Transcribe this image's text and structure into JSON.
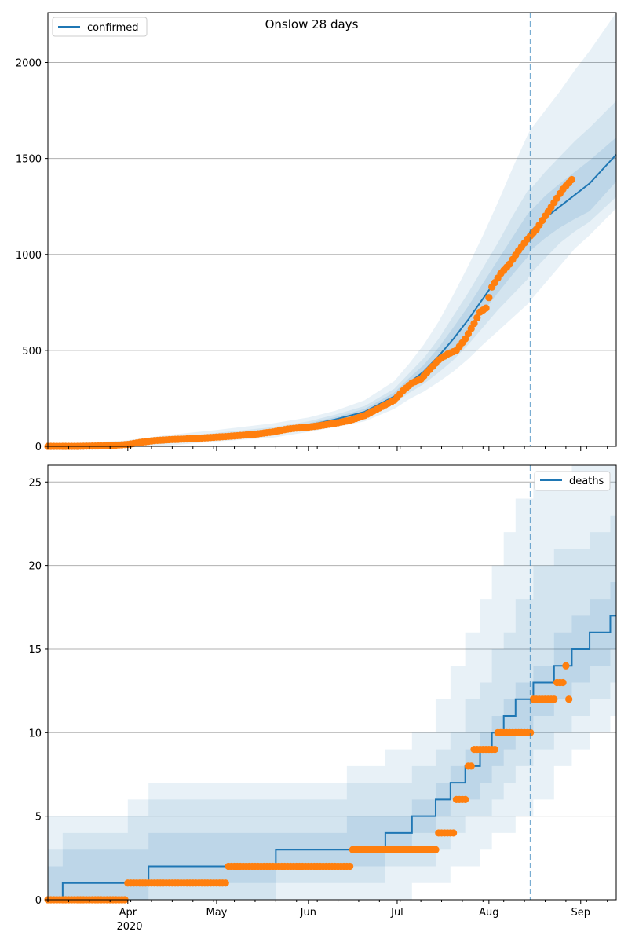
{
  "title": "Onslow 28 days",
  "colors": {
    "model_line": "#1f77b4",
    "observed": "#ff7f0e",
    "band": "#1f77b4",
    "grid": "#b0b0b0",
    "vline": "#1f77b4"
  },
  "x_axis": {
    "ticks": [
      "Apr",
      "May",
      "Jun",
      "Jul",
      "Aug",
      "Sep"
    ],
    "year_label": "2020"
  },
  "legend": {
    "top": "confirmed",
    "bottom": "deaths"
  },
  "chart_data": [
    {
      "type": "line",
      "panel": "top",
      "title": "Onslow 28 days",
      "legend_entry": "confirmed",
      "legend_position": "upper left",
      "grid": "horizontal",
      "xlim": [
        "2020-03-05",
        "2020-09-13"
      ],
      "ylim": [
        0,
        2260
      ],
      "yticks": [
        0,
        500,
        1000,
        1500,
        2000
      ],
      "forecast_start": "2020-08-15",
      "model": {
        "name": "confirmed",
        "dates": [
          "2020-03-05",
          "2020-03-31",
          "2020-04-15",
          "2020-05-01",
          "2020-05-20",
          "2020-06-01",
          "2020-06-10",
          "2020-06-20",
          "2020-06-30",
          "2020-07-05",
          "2020-07-10",
          "2020-07-15",
          "2020-07-20",
          "2020-07-25",
          "2020-07-30",
          "2020-08-04",
          "2020-08-09",
          "2020-08-14",
          "2020-08-15",
          "2020-08-20",
          "2020-08-25",
          "2020-08-30",
          "2020-09-04",
          "2020-09-13"
        ],
        "values": [
          0,
          5,
          30,
          50,
          80,
          110,
          140,
          180,
          260,
          330,
          390,
          470,
          560,
          660,
          770,
          880,
          980,
          1080,
          1120,
          1190,
          1250,
          1310,
          1370,
          1520
        ],
        "bands": {
          "upper_outer": [
            10,
            30,
            60,
            85,
            120,
            150,
            185,
            240,
            340,
            430,
            530,
            650,
            790,
            940,
            1100,
            1270,
            1450,
            1620,
            1650,
            1750,
            1850,
            1960,
            2060,
            2260
          ],
          "upper_mid": [
            6,
            18,
            45,
            70,
            100,
            130,
            165,
            210,
            300,
            380,
            460,
            560,
            680,
            800,
            930,
            1060,
            1200,
            1330,
            1340,
            1430,
            1510,
            1590,
            1660,
            1800
          ],
          "upper_inner": [
            3,
            10,
            38,
            60,
            90,
            120,
            152,
            195,
            280,
            355,
            425,
            515,
            620,
            730,
            850,
            970,
            1090,
            1210,
            1225,
            1305,
            1370,
            1430,
            1490,
            1610
          ],
          "lower_inner": [
            0,
            2,
            22,
            42,
            70,
            100,
            128,
            168,
            245,
            308,
            360,
            430,
            505,
            595,
            700,
            800,
            895,
            985,
            1020,
            1085,
            1140,
            1185,
            1225,
            1380
          ],
          "lower_mid": [
            0,
            0,
            15,
            34,
            60,
            88,
            116,
            152,
            222,
            278,
            325,
            385,
            450,
            530,
            620,
            710,
            790,
            870,
            900,
            980,
            1060,
            1120,
            1170,
            1300
          ],
          "lower_outer": [
            0,
            0,
            5,
            25,
            45,
            75,
            100,
            130,
            195,
            245,
            285,
            335,
            390,
            455,
            530,
            600,
            670,
            740,
            760,
            850,
            940,
            1030,
            1100,
            1240
          ]
        }
      },
      "observed": {
        "dates": [
          "2020-03-05",
          "2020-03-15",
          "2020-03-25",
          "2020-04-01",
          "2020-04-05",
          "2020-04-10",
          "2020-04-15",
          "2020-04-20",
          "2020-04-25",
          "2020-05-01",
          "2020-05-05",
          "2020-05-10",
          "2020-05-15",
          "2020-05-20",
          "2020-05-25",
          "2020-05-28",
          "2020-06-01",
          "2020-06-05",
          "2020-06-10",
          "2020-06-15",
          "2020-06-20",
          "2020-06-25",
          "2020-06-30",
          "2020-07-03",
          "2020-07-06",
          "2020-07-09",
          "2020-07-12",
          "2020-07-15",
          "2020-07-18",
          "2020-07-21",
          "2020-07-24",
          "2020-07-27",
          "2020-07-29",
          "2020-07-31",
          "2020-08-02",
          "2020-08-05",
          "2020-08-08",
          "2020-08-11",
          "2020-08-14",
          "2020-08-17",
          "2020-08-20",
          "2020-08-23",
          "2020-08-26",
          "2020-08-29"
        ],
        "values": [
          0,
          0,
          3,
          10,
          20,
          30,
          35,
          38,
          42,
          48,
          52,
          58,
          65,
          75,
          90,
          95,
          100,
          108,
          120,
          135,
          160,
          200,
          240,
          290,
          330,
          350,
          400,
          450,
          480,
          500,
          560,
          640,
          700,
          720,
          830,
          900,
          950,
          1020,
          1080,
          1130,
          1200,
          1270,
          1340,
          1390
        ]
      }
    },
    {
      "type": "line",
      "panel": "bottom",
      "legend_entry": "deaths",
      "legend_position": "upper right",
      "grid": "horizontal",
      "xlim": [
        "2020-03-05",
        "2020-09-13"
      ],
      "ylim": [
        0,
        26
      ],
      "yticks": [
        0,
        5,
        10,
        15,
        20,
        25
      ],
      "forecast_start": "2020-08-15",
      "model": {
        "name": "deaths",
        "dates": [
          "2020-03-05",
          "2020-03-09",
          "2020-03-31",
          "2020-04-07",
          "2020-05-20",
          "2020-06-13",
          "2020-06-26",
          "2020-07-05",
          "2020-07-13",
          "2020-07-18",
          "2020-07-23",
          "2020-07-28",
          "2020-08-01",
          "2020-08-05",
          "2020-08-09",
          "2020-08-15",
          "2020-08-17",
          "2020-08-22",
          "2020-08-28",
          "2020-09-03",
          "2020-09-10",
          "2020-09-13"
        ],
        "values": [
          0,
          1,
          1,
          2,
          3,
          3,
          4,
          5,
          6,
          7,
          8,
          9,
          10,
          11,
          12,
          13,
          13,
          14,
          15,
          16,
          17,
          17
        ],
        "bands": {
          "upper_outer": [
            5,
            5,
            6,
            7,
            7,
            8,
            9,
            10,
            12,
            14,
            16,
            18,
            20,
            22,
            24,
            25,
            25,
            25,
            26,
            26,
            26,
            26
          ],
          "upper_mid": [
            3,
            4,
            5,
            6,
            6,
            7,
            7,
            8,
            9,
            10,
            12,
            13,
            15,
            16,
            18,
            20,
            20,
            21,
            21,
            22,
            23,
            23
          ],
          "upper_inner": [
            2,
            3,
            3,
            4,
            4,
            5,
            5,
            6,
            7,
            8,
            9,
            10,
            11,
            12,
            13,
            14,
            14,
            16,
            17,
            18,
            19,
            19
          ],
          "lower_inner": [
            0,
            0,
            0,
            1,
            2,
            2,
            3,
            4,
            5,
            6,
            6,
            7,
            8,
            9,
            10,
            11,
            11,
            12,
            13,
            14,
            15,
            15
          ],
          "lower_mid": [
            0,
            0,
            0,
            0,
            1,
            1,
            2,
            2,
            3,
            4,
            5,
            5,
            6,
            7,
            8,
            9,
            9,
            10,
            11,
            12,
            13,
            13
          ],
          "lower_outer": [
            0,
            0,
            0,
            0,
            0,
            0,
            0,
            1,
            1,
            2,
            2,
            3,
            4,
            4,
            5,
            6,
            6,
            8,
            9,
            10,
            11,
            12
          ]
        }
      },
      "observed": {
        "dates": [
          "2020-03-05",
          "2020-03-15",
          "2020-03-25",
          "2020-03-31",
          "2020-04-10",
          "2020-04-20",
          "2020-04-30",
          "2020-05-04",
          "2020-05-14",
          "2020-05-24",
          "2020-06-03",
          "2020-06-12",
          "2020-06-15",
          "2020-06-25",
          "2020-07-05",
          "2020-07-14",
          "2020-07-20",
          "2020-07-24",
          "2020-07-26",
          "2020-07-28",
          "2020-08-01",
          "2020-08-03",
          "2020-08-08",
          "2020-08-12",
          "2020-08-15",
          "2020-08-19",
          "2020-08-23",
          "2020-08-26",
          "2020-08-28"
        ],
        "values": [
          0,
          0,
          0,
          1,
          1,
          1,
          1,
          2,
          2,
          2,
          2,
          2,
          3,
          3,
          3,
          4,
          6,
          8,
          9,
          9,
          9,
          10,
          10,
          10,
          12,
          12,
          13,
          14,
          12
        ]
      }
    }
  ]
}
